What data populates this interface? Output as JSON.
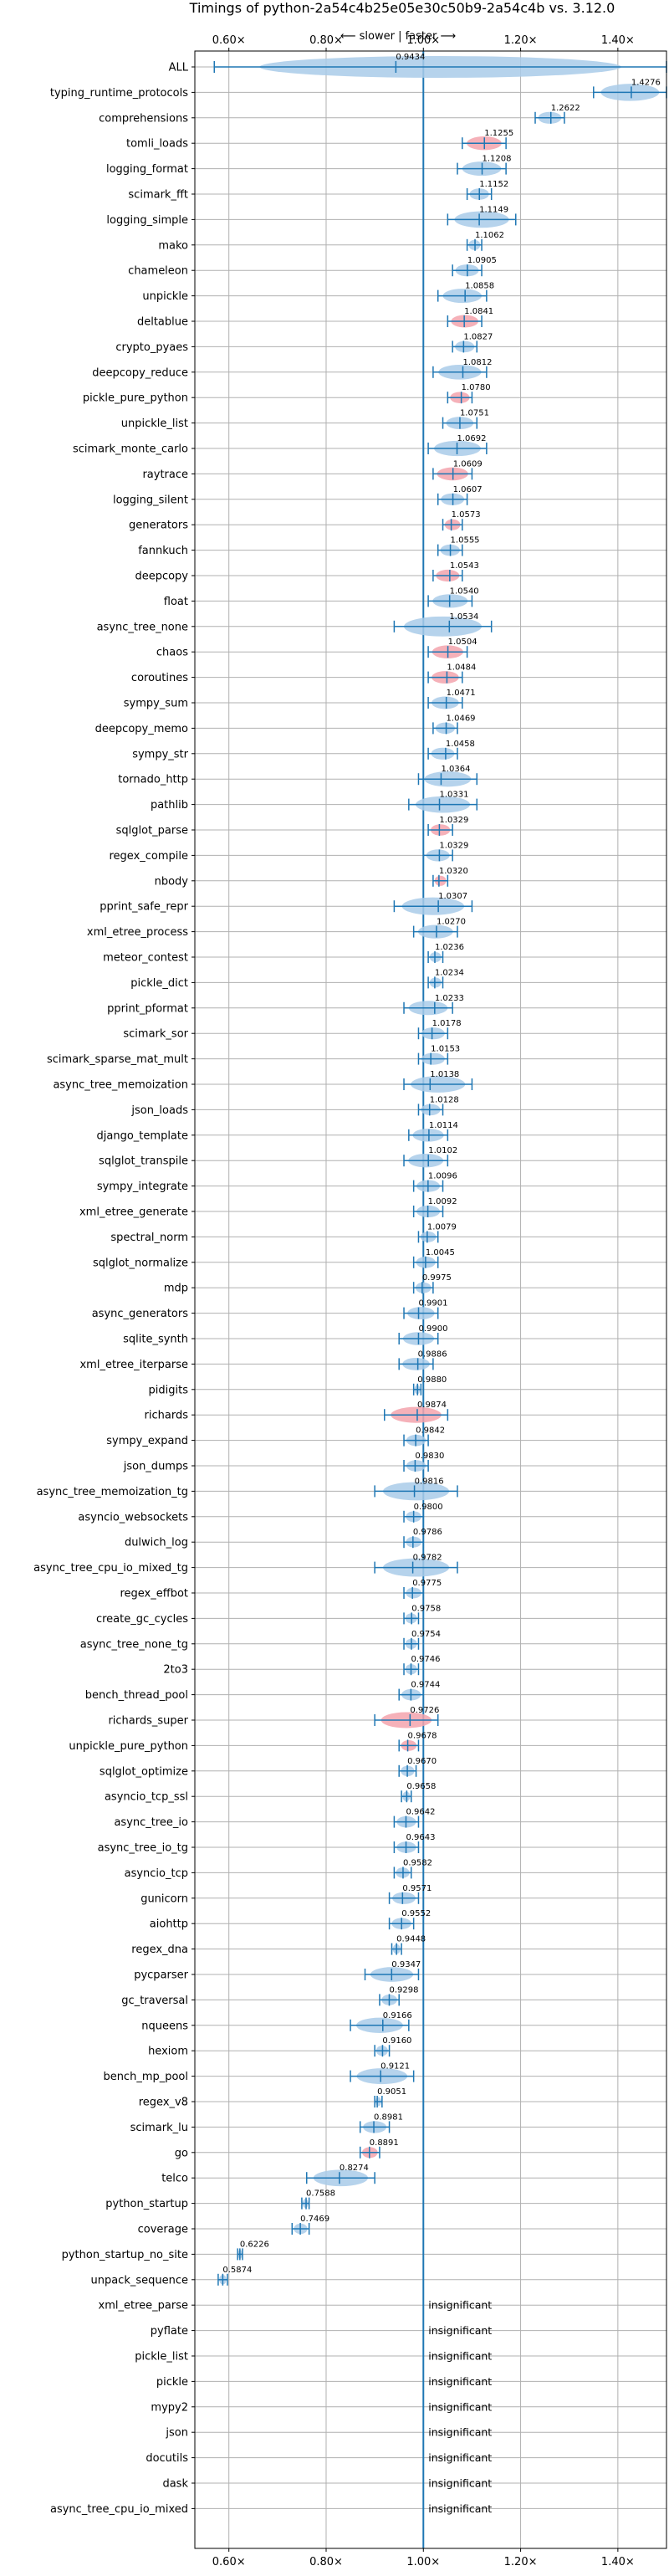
{
  "chart_data": {
    "type": "violin",
    "title": "Timings of python-2a54c4b25e05e30c50b9-2a54c4b vs. 3.12.0",
    "direction_label": "⟵ slower | faster ⟶",
    "xlim": [
      0.53,
      1.5
    ],
    "x_ticks": [
      0.6,
      0.8,
      1.0,
      1.2,
      1.4
    ],
    "x_tick_labels": [
      "0.60×",
      "0.80×",
      "1.00×",
      "1.20×",
      "1.40×"
    ],
    "grid": true,
    "reference_line": 1.0,
    "insignificant_label": "insignificant",
    "colors": {
      "violin_normal": "#a9cbe9",
      "violin_slow": "#f3a3ad",
      "errorbar": "#1f77b4",
      "grid": "#b0b0b0"
    },
    "benchmarks": [
      {
        "name": "ALL",
        "value": 0.9434,
        "low": 0.57,
        "high": 1.5,
        "significant": true,
        "color": "normal"
      },
      {
        "name": "typing_runtime_protocols",
        "value": 1.4276,
        "low": 1.35,
        "high": 1.5,
        "significant": true,
        "color": "normal"
      },
      {
        "name": "comprehensions",
        "value": 1.2622,
        "low": 1.23,
        "high": 1.29,
        "significant": true,
        "color": "normal"
      },
      {
        "name": "tomli_loads",
        "value": 1.1255,
        "low": 1.08,
        "high": 1.17,
        "significant": true,
        "color": "slow"
      },
      {
        "name": "logging_format",
        "value": 1.1208,
        "low": 1.07,
        "high": 1.17,
        "significant": true,
        "color": "normal"
      },
      {
        "name": "scimark_fft",
        "value": 1.1152,
        "low": 1.09,
        "high": 1.14,
        "significant": true,
        "color": "normal"
      },
      {
        "name": "logging_simple",
        "value": 1.1149,
        "low": 1.05,
        "high": 1.19,
        "significant": true,
        "color": "normal"
      },
      {
        "name": "mako",
        "value": 1.1062,
        "low": 1.09,
        "high": 1.12,
        "significant": true,
        "color": "normal"
      },
      {
        "name": "chameleon",
        "value": 1.0905,
        "low": 1.06,
        "high": 1.12,
        "significant": true,
        "color": "normal"
      },
      {
        "name": "unpickle",
        "value": 1.0858,
        "low": 1.03,
        "high": 1.13,
        "significant": true,
        "color": "normal"
      },
      {
        "name": "deltablue",
        "value": 1.0841,
        "low": 1.05,
        "high": 1.12,
        "significant": true,
        "color": "slow"
      },
      {
        "name": "crypto_pyaes",
        "value": 1.0827,
        "low": 1.06,
        "high": 1.11,
        "significant": true,
        "color": "normal"
      },
      {
        "name": "deepcopy_reduce",
        "value": 1.0812,
        "low": 1.02,
        "high": 1.13,
        "significant": true,
        "color": "normal"
      },
      {
        "name": "pickle_pure_python",
        "value": 1.078,
        "low": 1.05,
        "high": 1.1,
        "significant": true,
        "color": "slow"
      },
      {
        "name": "unpickle_list",
        "value": 1.0751,
        "low": 1.04,
        "high": 1.11,
        "significant": true,
        "color": "normal"
      },
      {
        "name": "scimark_monte_carlo",
        "value": 1.0692,
        "low": 1.01,
        "high": 1.13,
        "significant": true,
        "color": "normal"
      },
      {
        "name": "raytrace",
        "value": 1.0609,
        "low": 1.02,
        "high": 1.1,
        "significant": true,
        "color": "slow"
      },
      {
        "name": "logging_silent",
        "value": 1.0607,
        "low": 1.03,
        "high": 1.09,
        "significant": true,
        "color": "normal"
      },
      {
        "name": "generators",
        "value": 1.0573,
        "low": 1.04,
        "high": 1.08,
        "significant": true,
        "color": "slow"
      },
      {
        "name": "fannkuch",
        "value": 1.0555,
        "low": 1.03,
        "high": 1.08,
        "significant": true,
        "color": "normal"
      },
      {
        "name": "deepcopy",
        "value": 1.0543,
        "low": 1.02,
        "high": 1.08,
        "significant": true,
        "color": "slow"
      },
      {
        "name": "float",
        "value": 1.054,
        "low": 1.01,
        "high": 1.1,
        "significant": true,
        "color": "normal"
      },
      {
        "name": "async_tree_none",
        "value": 1.0534,
        "low": 0.94,
        "high": 1.14,
        "significant": true,
        "color": "normal"
      },
      {
        "name": "chaos",
        "value": 1.0504,
        "low": 1.01,
        "high": 1.09,
        "significant": true,
        "color": "slow"
      },
      {
        "name": "coroutines",
        "value": 1.0484,
        "low": 1.01,
        "high": 1.08,
        "significant": true,
        "color": "slow"
      },
      {
        "name": "sympy_sum",
        "value": 1.0471,
        "low": 1.01,
        "high": 1.08,
        "significant": true,
        "color": "normal"
      },
      {
        "name": "deepcopy_memo",
        "value": 1.0469,
        "low": 1.02,
        "high": 1.07,
        "significant": true,
        "color": "normal"
      },
      {
        "name": "sympy_str",
        "value": 1.0458,
        "low": 1.01,
        "high": 1.07,
        "significant": true,
        "color": "normal"
      },
      {
        "name": "tornado_http",
        "value": 1.0364,
        "low": 0.99,
        "high": 1.11,
        "significant": true,
        "color": "normal"
      },
      {
        "name": "pathlib",
        "value": 1.0331,
        "low": 0.97,
        "high": 1.11,
        "significant": true,
        "color": "normal"
      },
      {
        "name": "sqlglot_parse",
        "value": 1.0329,
        "low": 1.01,
        "high": 1.06,
        "significant": true,
        "color": "slow"
      },
      {
        "name": "regex_compile",
        "value": 1.0329,
        "low": 1.0,
        "high": 1.06,
        "significant": true,
        "color": "normal"
      },
      {
        "name": "nbody",
        "value": 1.032,
        "low": 1.02,
        "high": 1.05,
        "significant": true,
        "color": "slow"
      },
      {
        "name": "pprint_safe_repr",
        "value": 1.0307,
        "low": 0.94,
        "high": 1.1,
        "significant": true,
        "color": "normal"
      },
      {
        "name": "xml_etree_process",
        "value": 1.027,
        "low": 0.98,
        "high": 1.07,
        "significant": true,
        "color": "normal"
      },
      {
        "name": "meteor_contest",
        "value": 1.0236,
        "low": 1.01,
        "high": 1.04,
        "significant": true,
        "color": "normal"
      },
      {
        "name": "pickle_dict",
        "value": 1.0234,
        "low": 1.01,
        "high": 1.04,
        "significant": true,
        "color": "normal"
      },
      {
        "name": "pprint_pformat",
        "value": 1.0233,
        "low": 0.96,
        "high": 1.06,
        "significant": true,
        "color": "normal"
      },
      {
        "name": "scimark_sor",
        "value": 1.0178,
        "low": 0.99,
        "high": 1.05,
        "significant": true,
        "color": "normal"
      },
      {
        "name": "scimark_sparse_mat_mult",
        "value": 1.0153,
        "low": 0.99,
        "high": 1.05,
        "significant": true,
        "color": "normal"
      },
      {
        "name": "async_tree_memoization",
        "value": 1.0138,
        "low": 0.96,
        "high": 1.1,
        "significant": true,
        "color": "normal"
      },
      {
        "name": "json_loads",
        "value": 1.0128,
        "low": 0.99,
        "high": 1.04,
        "significant": true,
        "color": "normal"
      },
      {
        "name": "django_template",
        "value": 1.0114,
        "low": 0.97,
        "high": 1.05,
        "significant": true,
        "color": "normal"
      },
      {
        "name": "sqlglot_transpile",
        "value": 1.0102,
        "low": 0.96,
        "high": 1.05,
        "significant": true,
        "color": "normal"
      },
      {
        "name": "sympy_integrate",
        "value": 1.0096,
        "low": 0.98,
        "high": 1.04,
        "significant": true,
        "color": "normal"
      },
      {
        "name": "xml_etree_generate",
        "value": 1.0092,
        "low": 0.98,
        "high": 1.04,
        "significant": true,
        "color": "normal"
      },
      {
        "name": "spectral_norm",
        "value": 1.0079,
        "low": 0.99,
        "high": 1.03,
        "significant": true,
        "color": "normal"
      },
      {
        "name": "sqlglot_normalize",
        "value": 1.0045,
        "low": 0.98,
        "high": 1.03,
        "significant": true,
        "color": "normal"
      },
      {
        "name": "mdp",
        "value": 0.9975,
        "low": 0.98,
        "high": 1.02,
        "significant": true,
        "color": "normal"
      },
      {
        "name": "async_generators",
        "value": 0.9901,
        "low": 0.96,
        "high": 1.03,
        "significant": true,
        "color": "normal"
      },
      {
        "name": "sqlite_synth",
        "value": 0.99,
        "low": 0.95,
        "high": 1.03,
        "significant": true,
        "color": "normal"
      },
      {
        "name": "xml_etree_iterparse",
        "value": 0.9886,
        "low": 0.95,
        "high": 1.02,
        "significant": true,
        "color": "normal"
      },
      {
        "name": "pidigits",
        "value": 0.988,
        "low": 0.98,
        "high": 0.995,
        "significant": true,
        "color": "normal"
      },
      {
        "name": "richards",
        "value": 0.9874,
        "low": 0.92,
        "high": 1.05,
        "significant": true,
        "color": "slow"
      },
      {
        "name": "sympy_expand",
        "value": 0.9842,
        "low": 0.96,
        "high": 1.01,
        "significant": true,
        "color": "normal"
      },
      {
        "name": "json_dumps",
        "value": 0.983,
        "low": 0.96,
        "high": 1.01,
        "significant": true,
        "color": "normal"
      },
      {
        "name": "async_tree_memoization_tg",
        "value": 0.9816,
        "low": 0.9,
        "high": 1.07,
        "significant": true,
        "color": "normal"
      },
      {
        "name": "asyncio_websockets",
        "value": 0.98,
        "low": 0.96,
        "high": 1.0,
        "significant": true,
        "color": "normal"
      },
      {
        "name": "dulwich_log",
        "value": 0.9786,
        "low": 0.96,
        "high": 1.0,
        "significant": true,
        "color": "normal"
      },
      {
        "name": "async_tree_cpu_io_mixed_tg",
        "value": 0.9782,
        "low": 0.9,
        "high": 1.07,
        "significant": true,
        "color": "normal"
      },
      {
        "name": "regex_effbot",
        "value": 0.9775,
        "low": 0.96,
        "high": 1.0,
        "significant": true,
        "color": "normal"
      },
      {
        "name": "create_gc_cycles",
        "value": 0.9758,
        "low": 0.96,
        "high": 0.99,
        "significant": true,
        "color": "normal"
      },
      {
        "name": "async_tree_none_tg",
        "value": 0.9754,
        "low": 0.96,
        "high": 0.99,
        "significant": true,
        "color": "normal"
      },
      {
        "name": "2to3",
        "value": 0.9746,
        "low": 0.96,
        "high": 0.99,
        "significant": true,
        "color": "normal"
      },
      {
        "name": "bench_thread_pool",
        "value": 0.9744,
        "low": 0.95,
        "high": 1.0,
        "significant": true,
        "color": "normal"
      },
      {
        "name": "richards_super",
        "value": 0.9726,
        "low": 0.9,
        "high": 1.03,
        "significant": true,
        "color": "slow"
      },
      {
        "name": "unpickle_pure_python",
        "value": 0.9678,
        "low": 0.95,
        "high": 0.99,
        "significant": true,
        "color": "slow"
      },
      {
        "name": "sqlglot_optimize",
        "value": 0.967,
        "low": 0.95,
        "high": 0.985,
        "significant": true,
        "color": "normal"
      },
      {
        "name": "asyncio_tcp_ssl",
        "value": 0.9658,
        "low": 0.955,
        "high": 0.975,
        "significant": true,
        "color": "normal"
      },
      {
        "name": "async_tree_io",
        "value": 0.9642,
        "low": 0.94,
        "high": 0.99,
        "significant": true,
        "color": "normal"
      },
      {
        "name": "async_tree_io_tg",
        "value": 0.9643,
        "low": 0.94,
        "high": 0.99,
        "significant": true,
        "color": "normal"
      },
      {
        "name": "asyncio_tcp",
        "value": 0.9582,
        "low": 0.94,
        "high": 0.975,
        "significant": true,
        "color": "normal"
      },
      {
        "name": "gunicorn",
        "value": 0.9571,
        "low": 0.93,
        "high": 0.99,
        "significant": true,
        "color": "normal"
      },
      {
        "name": "aiohttp",
        "value": 0.9552,
        "low": 0.93,
        "high": 0.98,
        "significant": true,
        "color": "normal"
      },
      {
        "name": "regex_dna",
        "value": 0.9448,
        "low": 0.935,
        "high": 0.955,
        "significant": true,
        "color": "normal"
      },
      {
        "name": "pycparser",
        "value": 0.9347,
        "low": 0.88,
        "high": 0.99,
        "significant": true,
        "color": "normal"
      },
      {
        "name": "gc_traversal",
        "value": 0.9298,
        "low": 0.91,
        "high": 0.95,
        "significant": true,
        "color": "normal"
      },
      {
        "name": "nqueens",
        "value": 0.9166,
        "low": 0.85,
        "high": 0.97,
        "significant": true,
        "color": "normal"
      },
      {
        "name": "hexiom",
        "value": 0.916,
        "low": 0.9,
        "high": 0.93,
        "significant": true,
        "color": "normal"
      },
      {
        "name": "bench_mp_pool",
        "value": 0.9121,
        "low": 0.85,
        "high": 0.98,
        "significant": true,
        "color": "normal"
      },
      {
        "name": "regex_v8",
        "value": 0.9051,
        "low": 0.9,
        "high": 0.915,
        "significant": true,
        "color": "normal"
      },
      {
        "name": "scimark_lu",
        "value": 0.8981,
        "low": 0.87,
        "high": 0.93,
        "significant": true,
        "color": "normal"
      },
      {
        "name": "go",
        "value": 0.8891,
        "low": 0.87,
        "high": 0.91,
        "significant": true,
        "color": "slow"
      },
      {
        "name": "telco",
        "value": 0.8274,
        "low": 0.76,
        "high": 0.9,
        "significant": true,
        "color": "normal"
      },
      {
        "name": "python_startup",
        "value": 0.7588,
        "low": 0.75,
        "high": 0.765,
        "significant": true,
        "color": "normal"
      },
      {
        "name": "coverage",
        "value": 0.7469,
        "low": 0.73,
        "high": 0.765,
        "significant": true,
        "color": "normal"
      },
      {
        "name": "python_startup_no_site",
        "value": 0.6226,
        "low": 0.618,
        "high": 0.628,
        "significant": true,
        "color": "normal"
      },
      {
        "name": "unpack_sequence",
        "value": 0.5874,
        "low": 0.578,
        "high": 0.597,
        "significant": true,
        "color": "normal"
      },
      {
        "name": "xml_etree_parse",
        "value": null,
        "significant": false
      },
      {
        "name": "pyflate",
        "value": null,
        "significant": false
      },
      {
        "name": "pickle_list",
        "value": null,
        "significant": false
      },
      {
        "name": "pickle",
        "value": null,
        "significant": false
      },
      {
        "name": "mypy2",
        "value": null,
        "significant": false
      },
      {
        "name": "json",
        "value": null,
        "significant": false
      },
      {
        "name": "docutils",
        "value": null,
        "significant": false
      },
      {
        "name": "dask",
        "value": null,
        "significant": false
      },
      {
        "name": "async_tree_cpu_io_mixed",
        "value": null,
        "significant": false
      }
    ]
  }
}
